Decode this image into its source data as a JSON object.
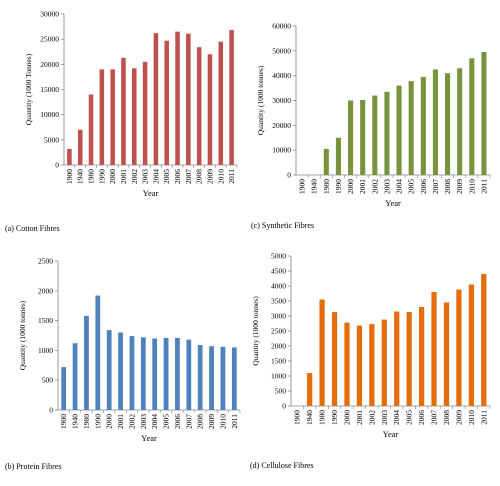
{
  "chart_data": [
    {
      "id": "a",
      "type": "bar",
      "caption": "(a) Cotton Fibres",
      "xlabel": "Year",
      "ylabel": "Quantity (1000 Tonnes)",
      "ylim": [
        0,
        30000
      ],
      "yticks": [
        0,
        5000,
        10000,
        15000,
        20000,
        25000,
        30000
      ],
      "color": "#c0504d",
      "categories": [
        "1900",
        "1940",
        "1980",
        "1990",
        "2000",
        "2001",
        "2002",
        "2003",
        "2004",
        "2005",
        "2006",
        "2007",
        "2008",
        "2009",
        "2010",
        "2011"
      ],
      "values": [
        3200,
        7000,
        14000,
        19000,
        19000,
        21300,
        19200,
        20500,
        26200,
        24700,
        26500,
        26100,
        23400,
        22000,
        24500,
        26800
      ]
    },
    {
      "id": "c",
      "type": "bar",
      "caption": "(c) Synthetic Fibres",
      "xlabel": "Year",
      "ylabel": "Quantity (1000 tonnes)",
      "ylim": [
        0,
        60000
      ],
      "yticks": [
        0,
        10000,
        20000,
        30000,
        40000,
        50000,
        60000
      ],
      "color": "#77933c",
      "categories": [
        "1900",
        "1940",
        "1980",
        "1990",
        "2000",
        "2001",
        "2002",
        "2003",
        "2004",
        "2005",
        "2006",
        "2007",
        "2008",
        "2009",
        "2010",
        "2011"
      ],
      "values": [
        0,
        0,
        10500,
        15000,
        30000,
        30200,
        32000,
        33500,
        36000,
        37800,
        39500,
        42500,
        41000,
        43000,
        47000,
        49500
      ]
    },
    {
      "id": "b",
      "type": "bar",
      "caption": "(b) Protein Fibres",
      "xlabel": "Year",
      "ylabel": "Quantity (1000 tonnes)",
      "ylim": [
        0,
        2500
      ],
      "yticks": [
        0,
        500,
        1000,
        1500,
        2000,
        2500
      ],
      "color": "#4f81bd",
      "categories": [
        "1900",
        "1940",
        "1980",
        "1990",
        "2000",
        "2001",
        "2002",
        "2003",
        "2004",
        "2005",
        "2006",
        "2007",
        "2008",
        "2009",
        "2010",
        "2011"
      ],
      "values": [
        720,
        1120,
        1580,
        1920,
        1340,
        1300,
        1240,
        1220,
        1200,
        1210,
        1210,
        1180,
        1090,
        1070,
        1060,
        1050
      ]
    },
    {
      "id": "d",
      "type": "bar",
      "caption": "(d) Cellulose Fibres",
      "xlabel": "Year",
      "ylabel": "Quantity (1000 tonnes)",
      "ylim": [
        0,
        5000
      ],
      "yticks": [
        0,
        500,
        1000,
        1500,
        2000,
        2500,
        3000,
        3500,
        4000,
        4500,
        5000
      ],
      "color": "#e46c0a",
      "categories": [
        "1900",
        "1940",
        "1980",
        "1990",
        "2000",
        "2001",
        "2002",
        "2003",
        "2004",
        "2005",
        "2006",
        "2007",
        "2008",
        "2009",
        "2010",
        "2011"
      ],
      "values": [
        0,
        1100,
        3550,
        3130,
        2780,
        2680,
        2730,
        2880,
        3150,
        3130,
        3300,
        3800,
        3450,
        3880,
        4050,
        4400
      ]
    }
  ]
}
